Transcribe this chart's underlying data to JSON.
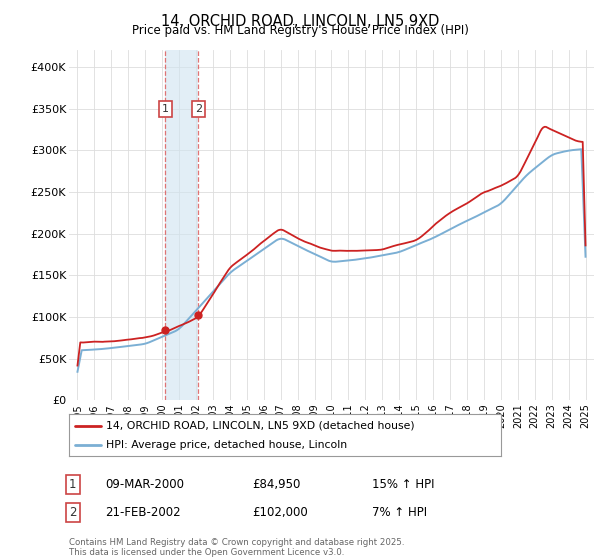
{
  "title": "14, ORCHID ROAD, LINCOLN, LN5 9XD",
  "subtitle": "Price paid vs. HM Land Registry's House Price Index (HPI)",
  "ylabel_ticks": [
    "£0",
    "£50K",
    "£100K",
    "£150K",
    "£200K",
    "£250K",
    "£300K",
    "£350K",
    "£400K"
  ],
  "ytick_values": [
    0,
    50000,
    100000,
    150000,
    200000,
    250000,
    300000,
    350000,
    400000
  ],
  "ylim": [
    0,
    420000
  ],
  "xlim_start": 1994.5,
  "xlim_end": 2025.5,
  "hpi_line_color": "#7bafd4",
  "price_line_color": "#cc2222",
  "marker_color": "#cc2222",
  "vline_color": "#dd6666",
  "shade_color": "#d0e4f0",
  "transaction1_x": 2000.19,
  "transaction1_y": 84950,
  "transaction1_label": "1",
  "transaction1_date": "09-MAR-2000",
  "transaction1_price": "£84,950",
  "transaction1_hpi": "15% ↑ HPI",
  "transaction2_x": 2002.13,
  "transaction2_y": 102000,
  "transaction2_label": "2",
  "transaction2_date": "21-FEB-2002",
  "transaction2_price": "£102,000",
  "transaction2_hpi": "7% ↑ HPI",
  "legend_label1": "14, ORCHID ROAD, LINCOLN, LN5 9XD (detached house)",
  "legend_label2": "HPI: Average price, detached house, Lincoln",
  "footnote": "Contains HM Land Registry data © Crown copyright and database right 2025.\nThis data is licensed under the Open Government Licence v3.0.",
  "background_color": "#ffffff",
  "grid_color": "#dddddd",
  "xtick_years": [
    1995,
    1996,
    1997,
    1998,
    1999,
    2000,
    2001,
    2002,
    2003,
    2004,
    2005,
    2006,
    2007,
    2008,
    2009,
    2010,
    2011,
    2012,
    2013,
    2014,
    2015,
    2016,
    2017,
    2018,
    2019,
    2020,
    2021,
    2022,
    2023,
    2024,
    2025
  ]
}
